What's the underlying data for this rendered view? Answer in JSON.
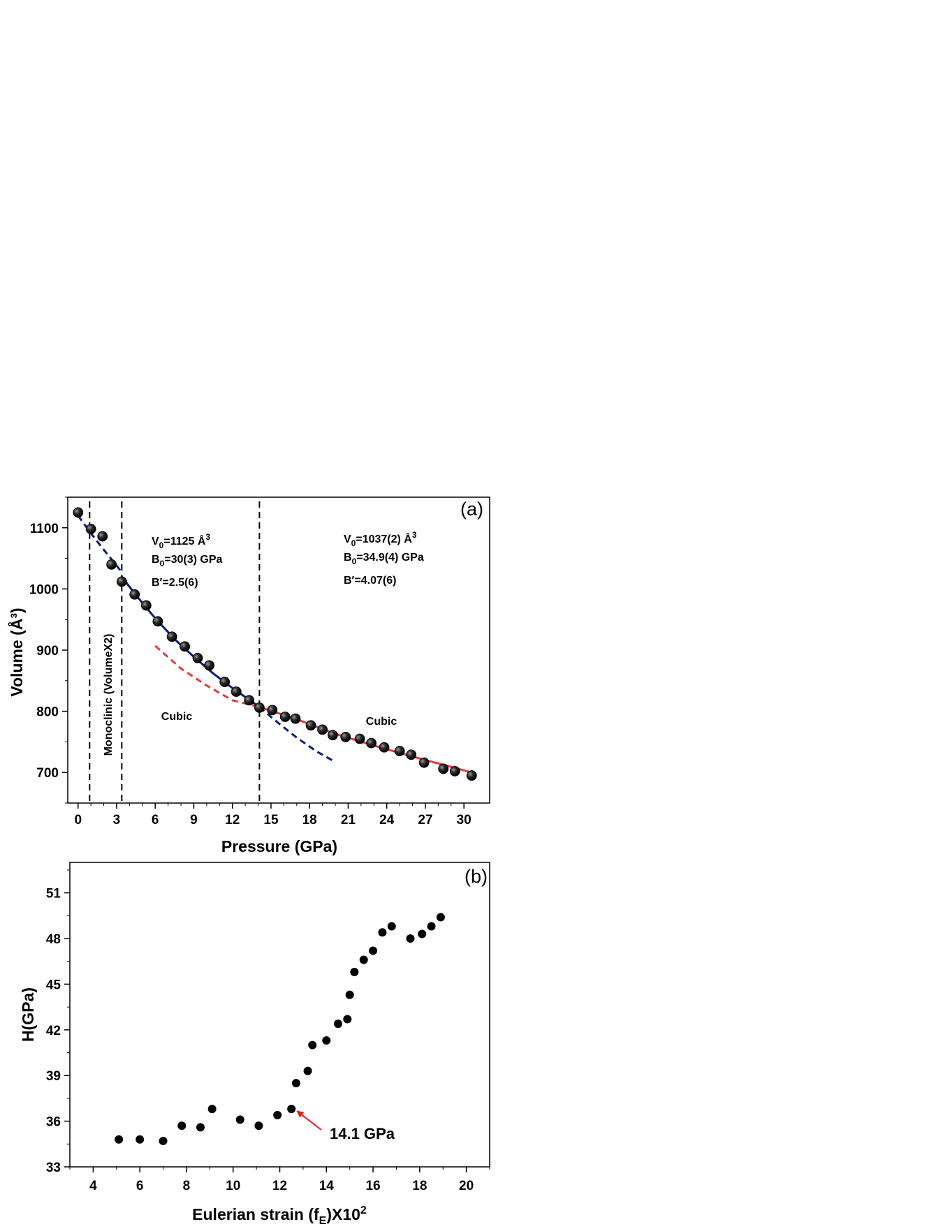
{
  "chart_data": [
    {
      "type": "scatter",
      "panel_label": "(a)",
      "xlabel": "Pressure (GPa)",
      "ylabel": "Volume (Å³)",
      "xlim": [
        -0.8,
        32
      ],
      "ylim": [
        650,
        1150
      ],
      "xticks": [
        0,
        3,
        6,
        9,
        12,
        15,
        18,
        21,
        24,
        27,
        30
      ],
      "yticks": [
        700,
        800,
        900,
        1000,
        1100
      ],
      "grid": false,
      "series": [
        {
          "marker": "sphere",
          "color": "#111111",
          "x": [
            0.0,
            1.0,
            1.9,
            2.6,
            3.4,
            4.4,
            5.3,
            6.2,
            7.3,
            8.3,
            9.3,
            10.2,
            11.4,
            12.3,
            13.3,
            14.1,
            15.1,
            16.1,
            16.9,
            18.1,
            19.0,
            19.8,
            20.8,
            21.9,
            22.8,
            23.8,
            25.0,
            25.9,
            26.9,
            28.4,
            29.3,
            30.6
          ],
          "y": [
            1125,
            1098,
            1086,
            1040,
            1012,
            991,
            973,
            947,
            922,
            906,
            887,
            875,
            848,
            832,
            818,
            806,
            802,
            791,
            788,
            777,
            770,
            761,
            758,
            755,
            748,
            741,
            735,
            729,
            716,
            706,
            702,
            695
          ]
        }
      ],
      "fits": [
        {
          "color": "#0a1b7a",
          "style": "dashed",
          "x": [
            0.0,
            1.0,
            2.0,
            3.0,
            3.4
          ],
          "y": [
            1120,
            1091,
            1064,
            1038,
            1027
          ]
        },
        {
          "color": "#0a1b7a",
          "style": "solid",
          "x": [
            3.4,
            4.5,
            6.0,
            7.5,
            9.0,
            10.5,
            12.0,
            13.5,
            14.1
          ],
          "y": [
            1020,
            990,
            952,
            918,
            889,
            862,
            838,
            816,
            807
          ]
        },
        {
          "color": "#0a1b7a",
          "style": "dashed",
          "x": [
            14.1,
            15.5,
            17.0,
            18.5,
            20.0
          ],
          "y": [
            807,
            782,
            757,
            735,
            717
          ]
        },
        {
          "color": "#e53b3b",
          "style": "dashed",
          "x": [
            6.0,
            8.0,
            10.0,
            12.0,
            14.1
          ],
          "y": [
            907,
            870,
            842,
            818,
            807
          ]
        },
        {
          "color": "#e53b3b",
          "style": "solid",
          "x": [
            14.1,
            17.0,
            20.0,
            23.0,
            26.0,
            28.5,
            30.6
          ],
          "y": [
            807,
            787,
            763,
            744,
            726,
            712,
            700
          ]
        }
      ],
      "phase_boundaries": [
        0.9,
        3.4,
        14.1
      ],
      "annotations": {
        "left": [
          "V0=1125 Å3",
          "B0=30(3) GPa",
          "B′=2.5(6)"
        ],
        "right": [
          "V0=1037(2) Å3",
          "B0=34.9(4) GPa",
          "B′=4.07(6)"
        ]
      },
      "region_labels": [
        "Monoclinic (VolumeX2)",
        "Cubic",
        "Cubic"
      ]
    },
    {
      "type": "scatter",
      "panel_label": "(b)",
      "xlabel": "Eulerian strain (fE)X10²",
      "ylabel": "H(GPa)",
      "xlim": [
        3,
        21
      ],
      "ylim": [
        33,
        53
      ],
      "xticks": [
        4,
        6,
        8,
        10,
        12,
        14,
        16,
        18,
        20
      ],
      "yticks": [
        33,
        36,
        39,
        42,
        45,
        48,
        51
      ],
      "grid": false,
      "series": [
        {
          "marker": "circle",
          "color": "#000000",
          "x": [
            5.1,
            6.0,
            7.0,
            7.8,
            8.6,
            9.1,
            10.3,
            11.1,
            11.9,
            12.5,
            12.7,
            13.2,
            13.4,
            14.0,
            14.5,
            14.9,
            15.0,
            15.2,
            15.6,
            16.0,
            16.4,
            16.8,
            17.6,
            18.1,
            18.5,
            18.9
          ],
          "y": [
            34.8,
            34.8,
            34.7,
            35.7,
            35.6,
            36.8,
            36.1,
            35.7,
            36.4,
            36.8,
            38.5,
            39.3,
            41.0,
            41.3,
            42.4,
            42.7,
            44.3,
            45.8,
            46.6,
            47.2,
            48.4,
            48.8,
            48.0,
            48.3,
            48.8,
            49.4
          ]
        }
      ],
      "arrow_annotation": {
        "text": "14.1 GPa",
        "color": "#e11f1f",
        "x": 12.5,
        "y": 36.8
      }
    }
  ]
}
